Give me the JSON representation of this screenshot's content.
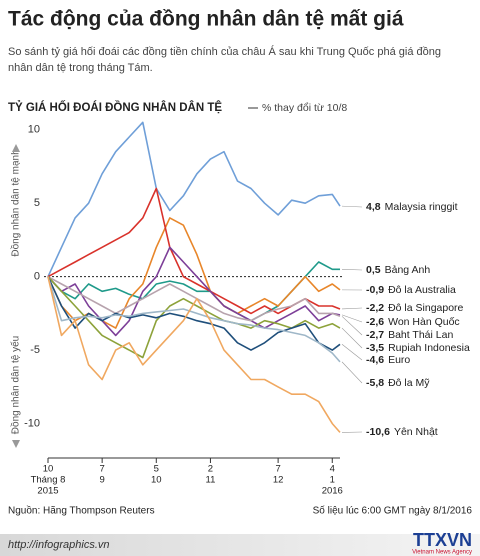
{
  "header": {
    "title": "Tác động của đồng nhân dân tệ mất giá",
    "subtitle": "So sánh tỷ giá hối đoái các đồng tiền chính của châu Á sau khi Trung Quốc phá giá đồng nhân dân tệ trong tháng Tám."
  },
  "chart_data": {
    "type": "line",
    "title": "TỶ GIÁ HỐI ĐOÁI ĐỒNG NHÂN DÂN TỆ",
    "unit": "% thay đổi từ 10/8",
    "y_label_top": "Đồng nhân dân tệ mạnh",
    "y_label_bottom": "Đồng nhân dân tệ yếu",
    "x": [
      0,
      7,
      14,
      21,
      28,
      35,
      42,
      49,
      56,
      63,
      70,
      77,
      84,
      91,
      98,
      105,
      112,
      119,
      126,
      133,
      140,
      147,
      151
    ],
    "xlim": [
      0,
      151
    ],
    "xticks": [
      {
        "value": 0,
        "label": "10"
      },
      {
        "value": 28,
        "label": "7"
      },
      {
        "value": 56,
        "label": "5"
      },
      {
        "value": 84,
        "label": "2"
      },
      {
        "value": 119,
        "label": "7"
      },
      {
        "value": 147,
        "label": "4"
      }
    ],
    "xtick_months": [
      "Tháng 8",
      "9",
      "10",
      "11",
      "12",
      "1"
    ],
    "xtick_years": [
      {
        "value": 0,
        "label": "2015"
      },
      {
        "value": 147,
        "label": "2016"
      }
    ],
    "ylim": [
      -12,
      11
    ],
    "yticks": [
      10,
      5,
      0,
      -5,
      -10
    ],
    "zero_line": true,
    "series": [
      {
        "name": "Malaysia ringgit",
        "color": "#6f9fd8",
        "end_label": "4,8",
        "values": [
          0,
          2,
          4,
          5,
          7,
          8.5,
          9.5,
          10.5,
          6,
          4.5,
          5.5,
          7,
          8,
          8.5,
          6.5,
          6,
          5,
          4.2,
          5.2,
          5,
          5.5,
          5.6,
          4.8
        ]
      },
      {
        "name": "Bảng Anh",
        "color": "#1f9a8a",
        "end_label": "0,5",
        "values": [
          0,
          -1,
          -1.5,
          -0.5,
          -1,
          -0.8,
          -1.2,
          -1.5,
          -0.5,
          -0.3,
          -0.5,
          -1,
          -1,
          -2,
          -2.5,
          -3,
          -2.5,
          -2,
          -1,
          0,
          1,
          0.5,
          0.5
        ]
      },
      {
        "name": "Đô la Australia",
        "color": "#e8862a",
        "end_label": "-0,9",
        "values": [
          0,
          -2,
          -3,
          -2.5,
          -3,
          -3.5,
          -1.5,
          -0.5,
          2,
          4,
          3.5,
          1.5,
          -1,
          -2,
          -2.5,
          -2,
          -1.5,
          -2,
          -1,
          0,
          -1,
          -0.5,
          -0.9
        ]
      },
      {
        "name": "Đô la Singapore",
        "color": "#d9322b",
        "end_label": "-2,2",
        "values": [
          0,
          0.5,
          1,
          1.5,
          2,
          2.5,
          3,
          4,
          6,
          2,
          0,
          -0.5,
          -1,
          -1.5,
          -2,
          -2.5,
          -2,
          -2.5,
          -2,
          -1.5,
          -2,
          -2,
          -2.2
        ]
      },
      {
        "name": "Won Hàn Quốc",
        "color": "#7d3f98",
        "end_label": "-2,6",
        "values": [
          0,
          -1,
          -0.5,
          -2,
          -3,
          -4,
          -3,
          -1,
          0,
          2,
          1,
          0,
          -1,
          -2,
          -2.5,
          -3,
          -3.5,
          -3,
          -2.5,
          -2,
          -3,
          -2.5,
          -2.6
        ]
      },
      {
        "name": "Baht Thái Lan",
        "color": "#b7a3ad",
        "end_label": "-2,7",
        "values": [
          0,
          -0.5,
          -1,
          -1.5,
          -2,
          -2.5,
          -2,
          -1.5,
          -1,
          -0.5,
          -1,
          -1.5,
          -2,
          -2.5,
          -2.8,
          -3,
          -2.5,
          -2.2,
          -2,
          -1.5,
          -2.5,
          -2.5,
          -2.7
        ]
      },
      {
        "name": "Rupiah Indonesia",
        "color": "#8da23a",
        "end_label": "-3,5",
        "values": [
          0,
          -1,
          -2,
          -3,
          -4,
          -4.5,
          -5,
          -5.5,
          -3,
          -2,
          -1.5,
          -2,
          -2.5,
          -3,
          -3.2,
          -3.5,
          -3,
          -3.2,
          -3.5,
          -3,
          -3.5,
          -3.2,
          -3.5
        ]
      },
      {
        "name": "Euro",
        "color": "#1f4f7b",
        "end_label": "-4,6",
        "values": [
          0,
          -2,
          -3.5,
          -2.5,
          -3,
          -2.5,
          -2.8,
          -2.6,
          -2.8,
          -2.5,
          -2.7,
          -3,
          -3.2,
          -3.5,
          -4.5,
          -5,
          -4.5,
          -3.8,
          -3.5,
          -3.2,
          -4.5,
          -5,
          -4.6
        ]
      },
      {
        "name": "Đô la Mỹ",
        "color": "#9fb7c8",
        "end_label": "-5,8",
        "values": [
          0,
          -3,
          -2.8,
          -2.7,
          -2.8,
          -2.6,
          -2.7,
          -2.5,
          -2.4,
          -2.3,
          -2.2,
          -2.5,
          -2.8,
          -3,
          -3.2,
          -3.3,
          -3.5,
          -3.6,
          -3.8,
          -4,
          -4.5,
          -5.2,
          -5.8
        ]
      },
      {
        "name": "Yên Nhật",
        "color": "#f0a860",
        "end_label": "-10,6",
        "values": [
          0,
          -4,
          -3,
          -6,
          -7,
          -5,
          -4.5,
          -6,
          -5,
          -4,
          -3,
          -1.5,
          -3,
          -5,
          -6,
          -7,
          -7,
          -7.5,
          -8,
          -8,
          -8.5,
          -10,
          -10.6
        ]
      }
    ]
  },
  "footer": {
    "source": "Nguồn: Hãng Thompson Reuters",
    "note": "Số liệu lúc 6:00 GMT ngày 8/1/2016",
    "url": "http://infographics.vn",
    "logo": "TTXVN",
    "logo_sub": "Vietnam News Agency"
  }
}
